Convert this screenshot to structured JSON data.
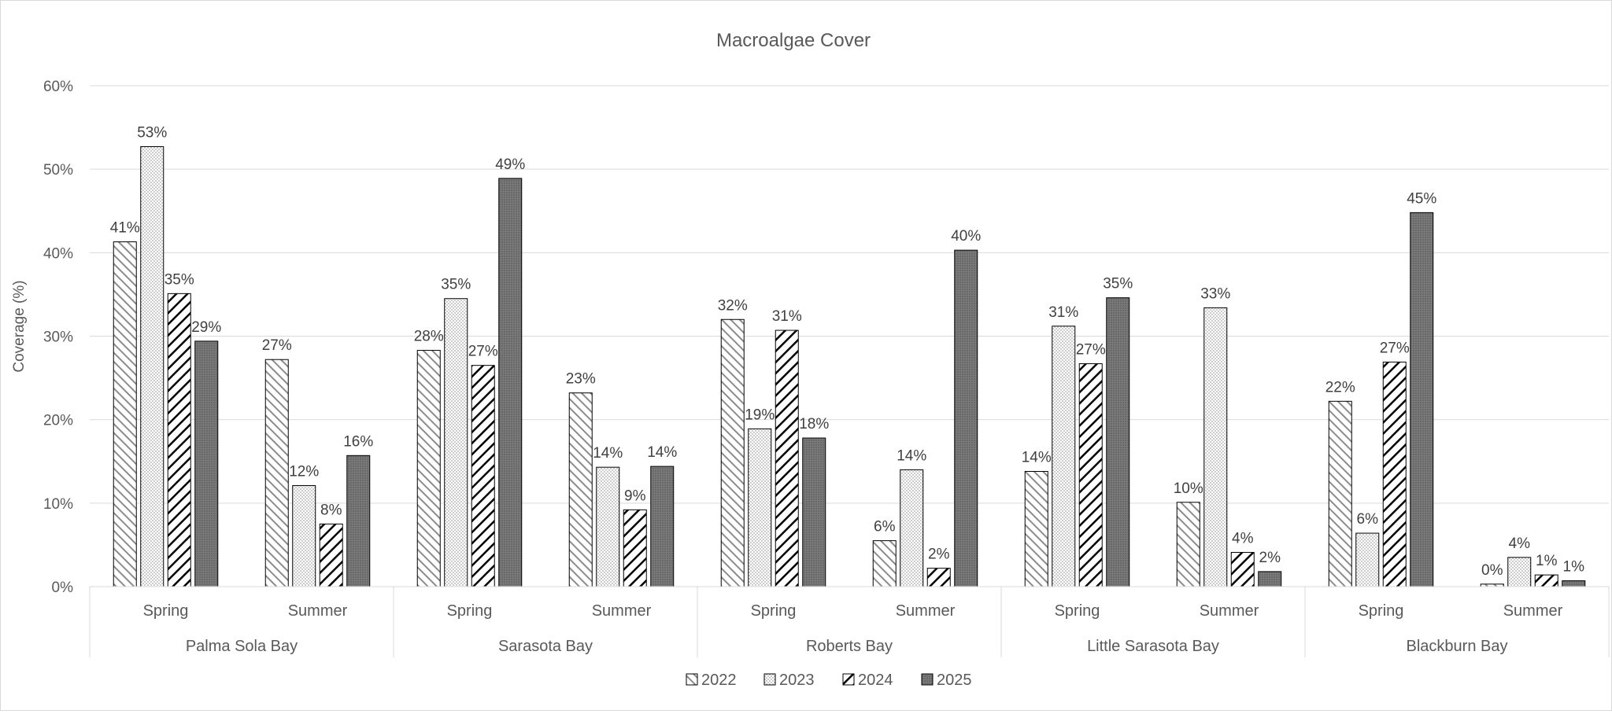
{
  "chart_data": {
    "type": "bar",
    "title": "Macroalgae Cover",
    "xlabel": "",
    "ylabel": "Coverage (%)",
    "ylim": [
      0,
      60
    ],
    "yticks": [
      0,
      10,
      20,
      30,
      40,
      50,
      60
    ],
    "ytick_labels": [
      "0%",
      "10%",
      "20%",
      "30%",
      "40%",
      "50%",
      "60%"
    ],
    "grid": true,
    "legend_position": "bottom",
    "groups": [
      "Palma Sola Bay",
      "Sarasota Bay",
      "Roberts Bay",
      "Little Sarasota Bay",
      "Blackburn Bay"
    ],
    "subcategories": [
      "Spring",
      "Summer"
    ],
    "categories": [
      "Palma Sola Bay / Spring",
      "Palma Sola Bay / Summer",
      "Sarasota Bay / Spring",
      "Sarasota Bay / Summer",
      "Roberts Bay / Spring",
      "Roberts Bay / Summer",
      "Little Sarasota Bay / Spring",
      "Little Sarasota Bay / Summer",
      "Blackburn Bay / Spring",
      "Blackburn Bay / Summer"
    ],
    "series": [
      {
        "name": "2022",
        "pattern": "diagonal-light",
        "values": [
          41.3,
          27.2,
          28.3,
          23.2,
          32.0,
          5.5,
          13.8,
          10.1,
          22.2,
          0.3
        ],
        "labels": [
          "41%",
          "27%",
          "28%",
          "23%",
          "32%",
          "6%",
          "14%",
          "10%",
          "22%",
          "0%"
        ]
      },
      {
        "name": "2023",
        "pattern": "dots",
        "values": [
          52.7,
          12.1,
          34.5,
          14.3,
          18.9,
          14.0,
          31.2,
          33.4,
          6.4,
          3.5
        ],
        "labels": [
          "53%",
          "12%",
          "35%",
          "14%",
          "19%",
          "14%",
          "31%",
          "33%",
          "6%",
          "4%"
        ]
      },
      {
        "name": "2024",
        "pattern": "diagonal-wide",
        "values": [
          35.1,
          7.5,
          26.5,
          9.2,
          30.7,
          2.2,
          26.7,
          4.1,
          26.9,
          1.4
        ],
        "labels": [
          "35%",
          "8%",
          "27%",
          "9%",
          "31%",
          "2%",
          "27%",
          "4%",
          "27%",
          "1%"
        ]
      },
      {
        "name": "2025",
        "pattern": "dark-dots",
        "values": [
          29.4,
          15.7,
          48.9,
          14.4,
          17.8,
          40.3,
          34.6,
          1.8,
          44.8,
          0.7
        ],
        "labels": [
          "29%",
          "16%",
          "49%",
          "14%",
          "18%",
          "40%",
          "35%",
          "2%",
          "45%",
          "1%"
        ]
      }
    ],
    "colors": {
      "text": "#404040",
      "axis_text": "#595959",
      "grid": "#d9d9d9",
      "bar_stroke": "#000000",
      "dark_fill": "#808080"
    }
  }
}
